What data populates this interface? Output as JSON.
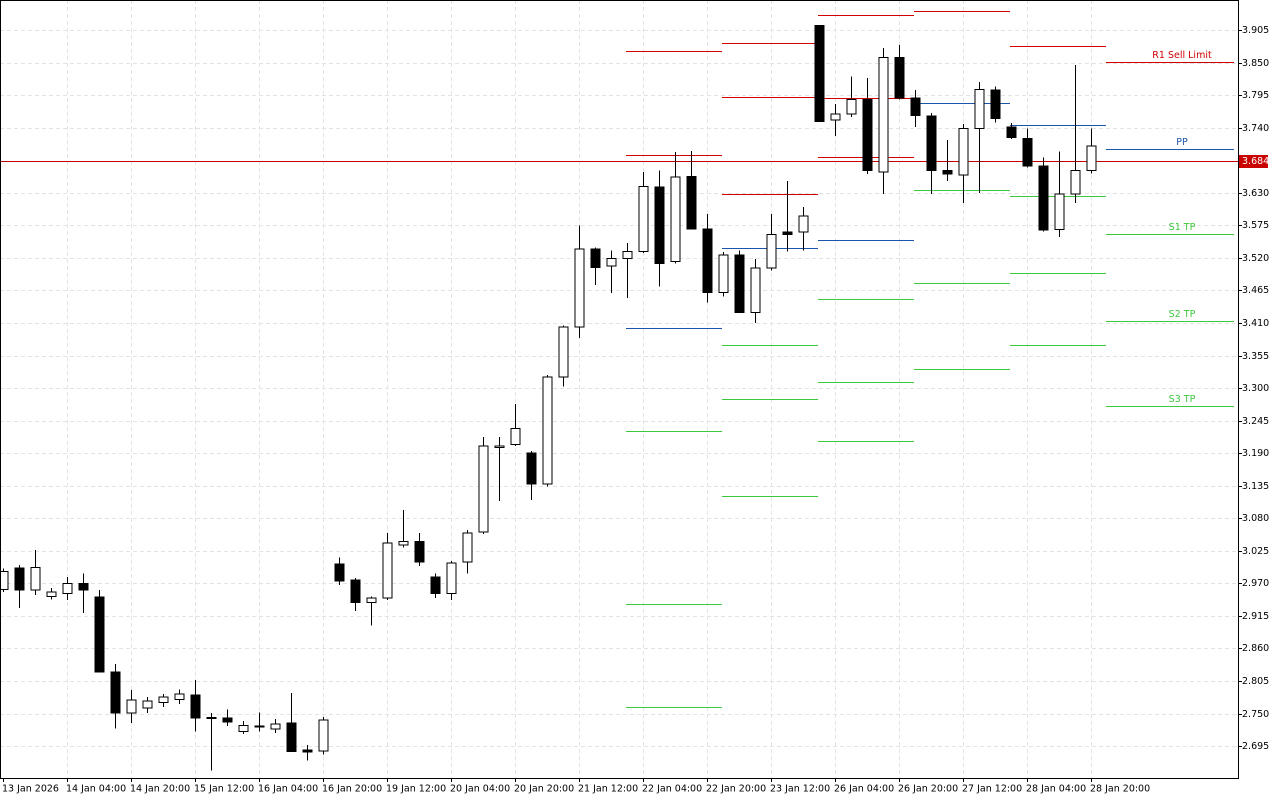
{
  "chart_data": {
    "type": "candlestick",
    "categories": [
      "13 Jan 2026",
      null,
      null,
      null,
      "14 Jan 04:00",
      null,
      null,
      null,
      "14 Jan 20:00",
      null,
      null,
      null,
      "15 Jan 12:00",
      null,
      null,
      null,
      "16 Jan 04:00",
      null,
      null,
      null,
      "16 Jan 20:00",
      null,
      null,
      null,
      "19 Jan 12:00",
      null,
      null,
      null,
      "20 Jan 04:00",
      null,
      null,
      null,
      "20 Jan 20:00",
      null,
      null,
      null,
      "21 Jan 12:00",
      null,
      null,
      null,
      "22 Jan 04:00",
      null,
      null,
      null,
      "22 Jan 20:00",
      null,
      null,
      null,
      "23 Jan 12:00",
      null,
      null,
      null,
      "26 Jan 04:00",
      null,
      null,
      null,
      "26 Jan 20:00",
      null,
      null,
      null,
      "27 Jan 12:00",
      null,
      null,
      null,
      "28 Jan 04:00",
      null,
      null,
      null,
      "28 Jan 20:00"
    ],
    "open": [
      2.96,
      2.996,
      2.959,
      2.948,
      2.953,
      2.97,
      2.947,
      2.82,
      2.751,
      2.759,
      2.769,
      2.774,
      2.781,
      2.743,
      2.742,
      2.72,
      2.729,
      2.724,
      2.734,
      2.688,
      2.687,
      3.003,
      2.976,
      2.938,
      2.945,
      3.035,
      3.041,
      2.981,
      2.953,
      3.006,
      3.057,
      3.2,
      3.205,
      3.19,
      3.138,
      3.319,
      3.403,
      3.535,
      3.506,
      3.519,
      3.531,
      3.64,
      3.514,
      3.658,
      3.569,
      3.462,
      3.525,
      3.428,
      3.503,
      3.564,
      3.564,
      3.913,
      3.753,
      3.763,
      3.788,
      3.665,
      3.859,
      3.79,
      3.76,
      3.668,
      3.66,
      3.739,
      3.804,
      3.741,
      3.722,
      3.675,
      3.568,
      3.628,
      3.668
    ],
    "high": [
      2.995,
      3.001,
      3.026,
      2.962,
      2.981,
      2.987,
      2.959,
      2.834,
      2.79,
      2.778,
      2.783,
      2.791,
      2.807,
      2.751,
      2.757,
      2.737,
      2.752,
      2.741,
      2.785,
      2.697,
      2.744,
      3.014,
      2.979,
      2.948,
      3.055,
      3.094,
      3.055,
      2.987,
      3.008,
      3.06,
      3.217,
      3.217,
      3.273,
      3.194,
      3.322,
      3.406,
      3.575,
      3.538,
      3.533,
      3.545,
      3.665,
      3.668,
      3.699,
      3.701,
      3.594,
      3.53,
      3.533,
      3.518,
      3.594,
      3.65,
      3.606,
      3.913,
      3.78,
      3.827,
      3.824,
      3.875,
      3.88,
      3.804,
      3.765,
      3.719,
      3.746,
      3.817,
      3.81,
      3.748,
      3.739,
      3.69,
      3.7,
      3.846,
      3.739
    ],
    "low": [
      2.955,
      2.928,
      2.95,
      2.943,
      2.942,
      2.92,
      2.82,
      2.725,
      2.734,
      2.751,
      2.761,
      2.766,
      2.72,
      2.654,
      2.729,
      2.715,
      2.72,
      2.717,
      2.685,
      2.671,
      2.681,
      2.967,
      2.923,
      2.899,
      2.942,
      3.031,
      2.999,
      2.945,
      2.942,
      2.987,
      3.053,
      3.109,
      3.202,
      3.111,
      3.134,
      3.303,
      3.385,
      3.474,
      3.461,
      3.452,
      3.528,
      3.472,
      3.511,
      3.569,
      3.445,
      3.455,
      3.427,
      3.41,
      3.499,
      3.531,
      3.533,
      3.751,
      3.726,
      3.758,
      3.662,
      3.628,
      3.788,
      3.741,
      3.628,
      3.65,
      3.613,
      3.63,
      3.749,
      3.721,
      3.673,
      3.565,
      3.555,
      3.613,
      3.663
    ],
    "close": [
      2.99,
      2.959,
      2.997,
      2.955,
      2.97,
      2.959,
      2.82,
      2.751,
      2.773,
      2.771,
      2.778,
      2.783,
      2.742,
      2.742,
      2.736,
      2.73,
      2.728,
      2.732,
      2.686,
      2.685,
      2.739,
      2.974,
      2.938,
      2.945,
      3.038,
      3.041,
      3.006,
      2.953,
      3.004,
      3.055,
      3.202,
      3.202,
      3.232,
      3.138,
      3.319,
      3.403,
      3.535,
      3.504,
      3.519,
      3.531,
      3.641,
      3.511,
      3.657,
      3.569,
      3.462,
      3.525,
      3.428,
      3.503,
      3.56,
      3.56,
      3.591,
      3.751,
      3.763,
      3.788,
      3.668,
      3.859,
      3.79,
      3.761,
      3.668,
      3.662,
      3.739,
      3.805,
      3.756,
      3.724,
      3.675,
      3.567,
      3.628,
      3.668,
      3.709
    ],
    "up_color": "#ffffff",
    "down_color": "#000000",
    "ylim": [
      2.641,
      3.956
    ],
    "yticks": [
      2.695,
      {
        "value": 2.75,
        "label": "2.750"
      },
      2.805,
      {
        "value": 2.86,
        "label": "2.860"
      },
      2.915,
      {
        "value": 2.97,
        "label": "2.970"
      },
      3.025,
      {
        "value": 3.08,
        "label": "3.080"
      },
      3.135,
      {
        "value": 3.19,
        "label": "3.190"
      },
      3.245,
      {
        "value": 3.3,
        "label": "3.300"
      },
      3.355,
      {
        "value": 3.41,
        "label": "3.410"
      },
      3.465,
      {
        "value": 3.52,
        "label": "3.520"
      },
      3.575,
      {
        "value": 3.63,
        "label": "3.630"
      },
      {
        "value": 3.74,
        "label": "3.740"
      },
      3.795,
      {
        "value": 3.85,
        "label": "3.850"
      },
      3.905
    ],
    "grid": true,
    "current_price": 3.684,
    "current_price_color": "#c80000",
    "level_colors": {
      "resistance": "#d00000",
      "pivot": "#1c55a8",
      "support": "#3cc83c"
    },
    "level_blocks": [
      {
        "resistance": [
          3.869,
          3.694
        ],
        "pivot": [
          3.401
        ],
        "support": [
          3.227,
          2.935,
          2.761
        ]
      },
      {
        "resistance": [
          3.883,
          3.792,
          3.628
        ],
        "pivot": [
          3.537
        ],
        "support": [
          3.373,
          3.281,
          3.118
        ]
      },
      {
        "resistance": [
          3.93,
          3.79,
          3.69
        ],
        "pivot": [
          3.55
        ],
        "support": [
          3.45,
          3.31,
          3.21
        ]
      },
      {
        "resistance": [
          3.937
        ],
        "pivot": [
          3.782
        ],
        "support": [
          3.635,
          3.477,
          3.332
        ]
      },
      {
        "resistance": [
          3.878
        ],
        "pivot": [
          3.744
        ],
        "support": [
          3.625,
          3.494,
          3.373
        ]
      }
    ],
    "labeled_levels": [
      {
        "name": "R1 Sell Limit",
        "value": 3.851,
        "color": "#d00000"
      },
      {
        "name": "PP",
        "value": 3.704,
        "color": "#1c55a8"
      },
      {
        "name": "S1 TP",
        "value": 3.56,
        "color": "#3cc83c"
      },
      {
        "name": "S2 TP",
        "value": 3.413,
        "color": "#3cc83c"
      },
      {
        "name": "S3 TP",
        "value": 3.27,
        "color": "#3cc83c"
      }
    ]
  }
}
